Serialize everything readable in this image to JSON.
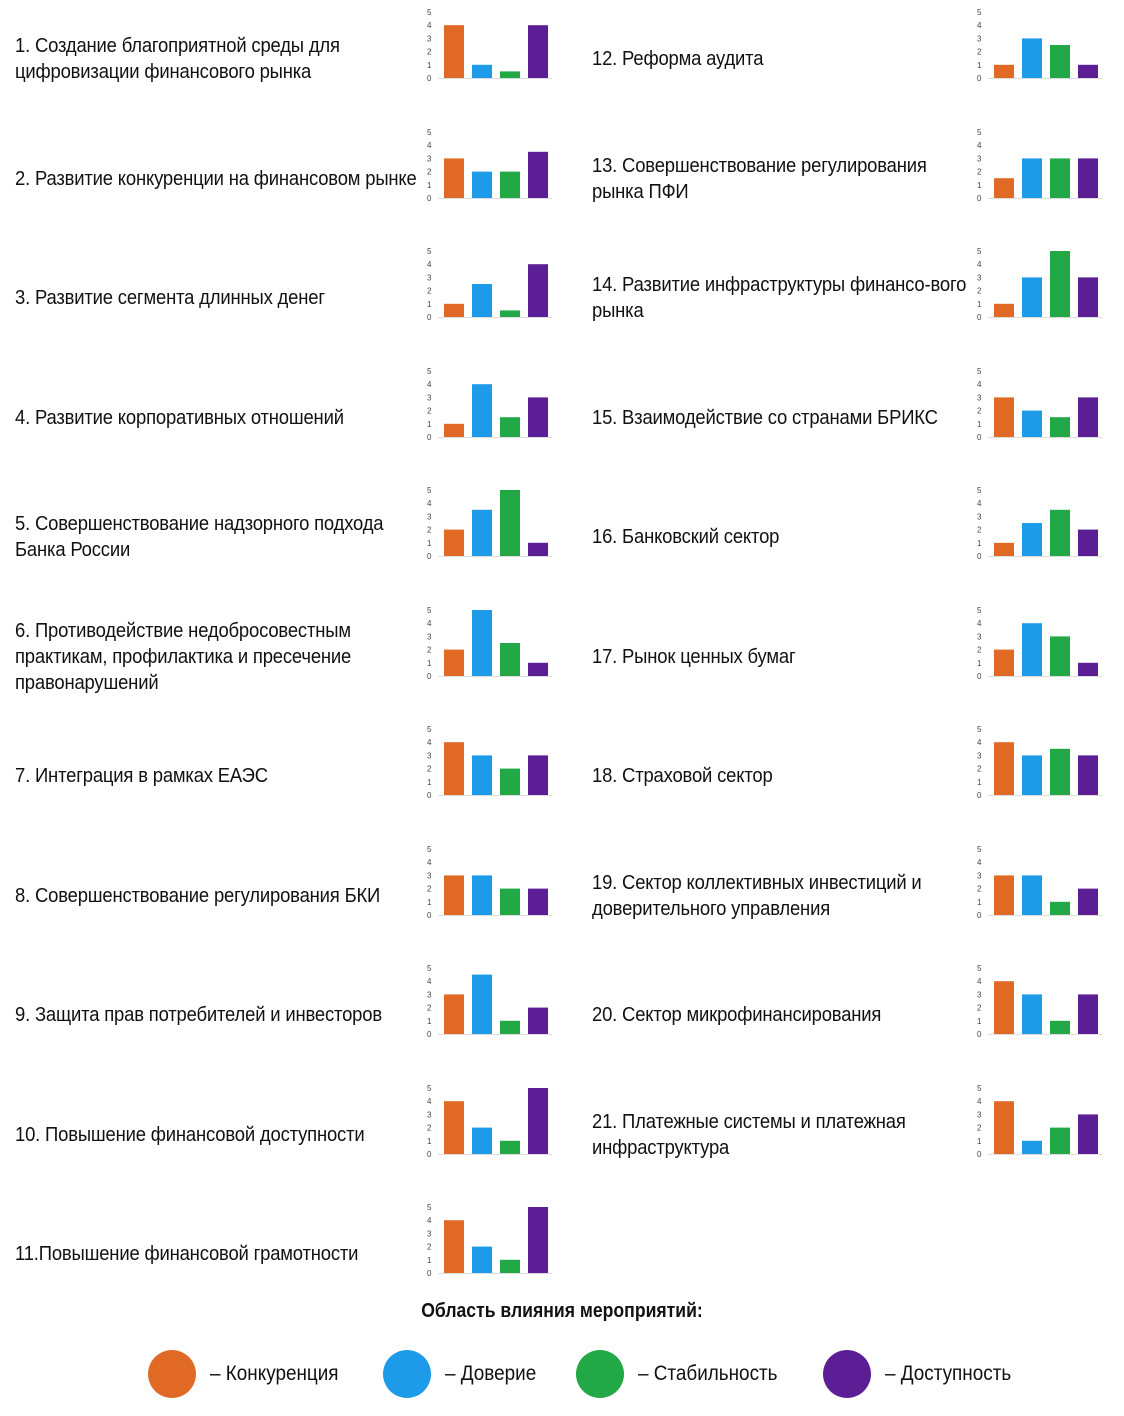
{
  "chart_data": {
    "type": "bar",
    "categories": [
      "Конкуренция",
      "Доверие",
      "Стабильность",
      "Доступность"
    ],
    "ylim": [
      0,
      5
    ],
    "y_ticks": [
      "0",
      "1",
      "2",
      "3",
      "4",
      "5"
    ],
    "colors": [
      "#e06a25",
      "#1e9be8",
      "#22a846",
      "#5b1e94"
    ],
    "measures": [
      {
        "label": "1. Создание благоприятной среды для цифровизации финансового рынка",
        "values": [
          4,
          1,
          0.5,
          4
        ]
      },
      {
        "label": "2. Развитие конкуренции на финансовом рынке",
        "values": [
          3,
          2,
          2,
          3.5
        ]
      },
      {
        "label": "3. Развитие сегмента длинных денег",
        "values": [
          1,
          2.5,
          0.5,
          4
        ]
      },
      {
        "label": "4. Развитие корпоративных отношений",
        "values": [
          1,
          4,
          1.5,
          3
        ]
      },
      {
        "label": "5. Совершенствование надзорного подхода Банка России",
        "values": [
          2,
          3.5,
          5,
          1
        ]
      },
      {
        "label": "6. Противодействие недобросовестным практикам, профилактика и пресечение правонарушений",
        "values": [
          2,
          5,
          2.5,
          1
        ]
      },
      {
        "label": "7. Интеграция в рамках ЕАЭС",
        "values": [
          4,
          3,
          2,
          3
        ]
      },
      {
        "label": "8. Совершенствование регулирования БКИ",
        "values": [
          3,
          3,
          2,
          2
        ]
      },
      {
        "label": "9. Защита прав потребителей и инвесторов",
        "values": [
          3,
          4.5,
          1,
          2
        ]
      },
      {
        "label": "10. Повышение финансовой доступности",
        "values": [
          4,
          2,
          1,
          5
        ]
      },
      {
        "label": "11.Повышение финансовой грамотности",
        "values": [
          4,
          2,
          1,
          5
        ]
      },
      {
        "label": "12. Реформа аудита",
        "values": [
          1,
          3,
          2.5,
          1
        ]
      },
      {
        "label": "13. Совершенствование регулирования рынка ПФИ",
        "values": [
          1.5,
          3,
          3,
          3
        ]
      },
      {
        "label": "14. Развитие инфраструктуры финансо-вого рынка",
        "values": [
          1,
          3,
          5,
          3
        ]
      },
      {
        "label": "15. Взаимодействие со странами БРИКС",
        "values": [
          3,
          2,
          1.5,
          3
        ]
      },
      {
        "label": "16. Банковский сектор",
        "values": [
          1,
          2.5,
          3.5,
          2
        ]
      },
      {
        "label": "17. Рынок ценных бумаг",
        "values": [
          2,
          4,
          3,
          1
        ]
      },
      {
        "label": "18. Страховой сектор",
        "values": [
          4,
          3,
          3.5,
          3
        ]
      },
      {
        "label": "19. Сектор коллективных инвестиций и доверительного управления",
        "values": [
          3,
          3,
          1,
          2
        ]
      },
      {
        "label": "20. Сектор микрофинансирования",
        "values": [
          4,
          3,
          1,
          3
        ]
      },
      {
        "label": "21. Платежные системы и платежная инфраструктура",
        "values": [
          4,
          1,
          2,
          3
        ]
      }
    ]
  },
  "legend": {
    "title": "Область влияния мероприятий:",
    "items": [
      {
        "label": "– Конкуренция",
        "color": "#e06a25"
      },
      {
        "label": "– Доверие",
        "color": "#1e9be8"
      },
      {
        "label": "– Стабильность",
        "color": "#22a846"
      },
      {
        "label": "– Доступность",
        "color": "#5b1e94"
      }
    ]
  }
}
